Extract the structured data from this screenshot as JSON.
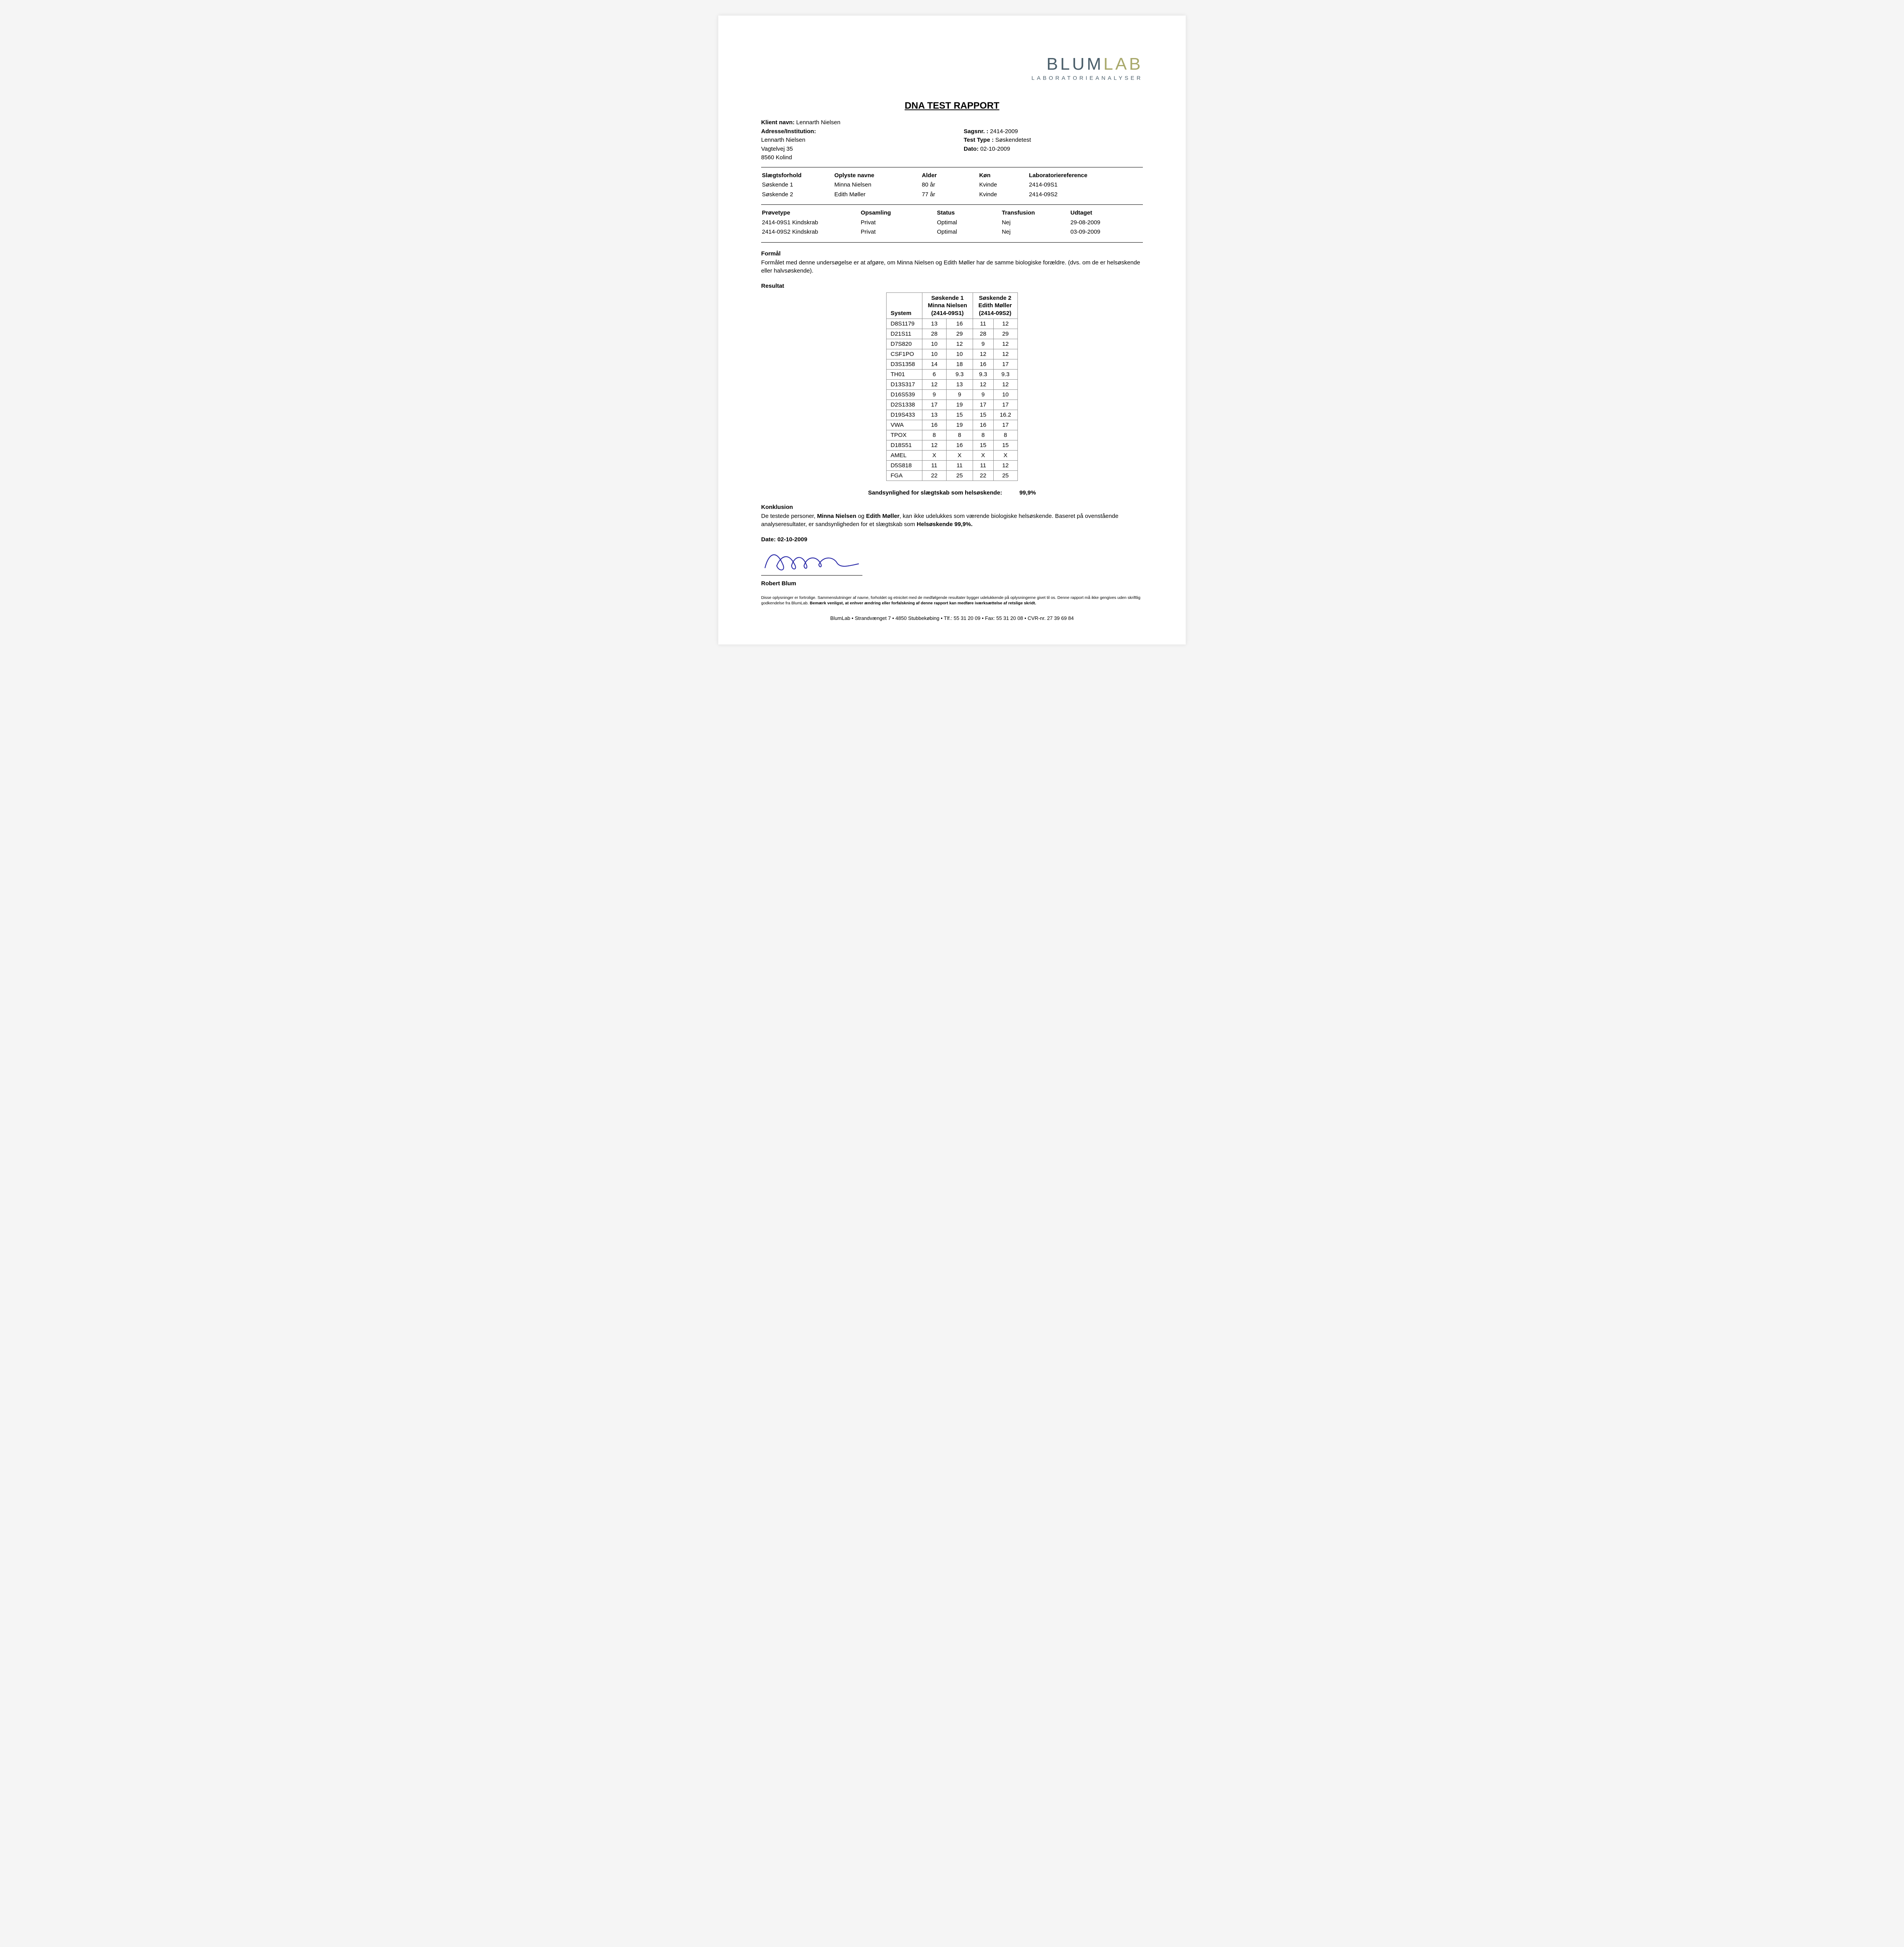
{
  "logo": {
    "part1": "BLUM",
    "part2": "LAB",
    "sub": "LABORATORIEANALYSER"
  },
  "title": "DNA TEST RAPPORT",
  "client": {
    "name_label": "Klient navn:",
    "name": "Lennarth Nielsen",
    "addr_label": "Adresse/Institution:",
    "addr1": "Lennarth Nielsen",
    "addr2": "Vagtelvej 35",
    "addr3": "8560 Kolind"
  },
  "caseinfo": {
    "case_label": "Sagsnr. :",
    "case": "2414-2009",
    "type_label": "Test Type :",
    "type": "Søskendetest",
    "date_label": "Dato:",
    "date": "02-10-2009"
  },
  "rel_head": {
    "c1": "Slægtsforhold",
    "c2": "Oplyste navne",
    "c3": "Alder",
    "c4": "Køn",
    "c5": "Laboratoriereference"
  },
  "rel_rows": [
    {
      "c1": "Søskende 1",
      "c2": "Minna Nielsen",
      "c3": "80 år",
      "c4": "Kvinde",
      "c5": "2414-09S1"
    },
    {
      "c1": "Søskende 2",
      "c2": "Edith Møller",
      "c3": "77 år",
      "c4": "Kvinde",
      "c5": "2414-09S2"
    }
  ],
  "samp_head": {
    "c1": "Prøvetype",
    "c2": "Opsamling",
    "c3": "Status",
    "c4": "Transfusion",
    "c5": "Udtaget"
  },
  "samp_rows": [
    {
      "c1": "2414-09S1 Kindskrab",
      "c2": "Privat",
      "c3": "Optimal",
      "c4": "Nej",
      "c5": "29-08-2009"
    },
    {
      "c1": "2414-09S2 Kindskrab",
      "c2": "Privat",
      "c3": "Optimal",
      "c4": "Nej",
      "c5": "03-09-2009"
    }
  ],
  "purpose": {
    "h": "Formål",
    "t": "Formålet med denne undersøgelse er at afgøre, om Minna Nielsen og Edith Møller har de samme biologiske forældre. (dvs. om de er helsøskende eller halvsøskende)."
  },
  "result_h": "Resultat",
  "result_head": {
    "sys": "System",
    "s1a": "Søskende 1",
    "s1b": "Minna Nielsen",
    "s1c": "(2414-09S1)",
    "s2a": "Søskende 2",
    "s2b": "Edith Møller",
    "s2c": "(2414-09S2)"
  },
  "result_rows": [
    [
      "D8S1179",
      "13",
      "16",
      "11",
      "12"
    ],
    [
      "D21S11",
      "28",
      "29",
      "28",
      "29"
    ],
    [
      "D7S820",
      "10",
      "12",
      "9",
      "12"
    ],
    [
      "CSF1PO",
      "10",
      "10",
      "12",
      "12"
    ],
    [
      "D3S1358",
      "14",
      "18",
      "16",
      "17"
    ],
    [
      "TH01",
      "6",
      "9.3",
      "9.3",
      "9.3"
    ],
    [
      "D13S317",
      "12",
      "13",
      "12",
      "12"
    ],
    [
      "D16S539",
      "9",
      "9",
      "9",
      "10"
    ],
    [
      "D2S1338",
      "17",
      "19",
      "17",
      "17"
    ],
    [
      "D19S433",
      "13",
      "15",
      "15",
      "16.2"
    ],
    [
      "VWA",
      "16",
      "19",
      "16",
      "17"
    ],
    [
      "TPOX",
      "8",
      "8",
      "8",
      "8"
    ],
    [
      "D18S51",
      "12",
      "16",
      "15",
      "15"
    ],
    [
      "AMEL",
      "X",
      "X",
      "X",
      "X"
    ],
    [
      "D5S818",
      "11",
      "11",
      "11",
      "12"
    ],
    [
      "FGA",
      "22",
      "25",
      "22",
      "25"
    ]
  ],
  "prob": {
    "label": "Sandsynlighed for slægtskab som helsøskende:",
    "value": "99,9%"
  },
  "concl": {
    "h": "Konklusion",
    "t1": "De testede personer, ",
    "p1": "Minna Nielsen",
    "t2": " og ",
    "p2": "Edith Møller",
    "t3": ", kan ikke udelukkes som værende biologiske helsøskende. Baseret på ovenstående analyseresultater, er sandsynligheden for et slægtskab som ",
    "t4": "Helsøskende 99,9%."
  },
  "sig": {
    "date_label": "Date: ",
    "date": "02-10-2009",
    "name": "Robert Blum"
  },
  "disclaimer": "Disse oplysninger er fortrolige. Sammenslutninger af navne, forholdet og etnicitet med de medfølgende resultater bygger udelukkende på oplysningerne givet til os. Denne rapport må ikke gengives uden skriftlig godkendelse fra BlumLab. ",
  "disclaimer_b": "Bemærk venligst, at enhver ændring eller forfalskning af denne rapport kan medføre iværksættelse af retslige skridt.",
  "footer": "BlumLab • Strandvænget 7 • 4850 Stubbekøbing •  Tlf.: 55 31 20 09 • Fax: 55 31 20 08 • CVR-nr. 27 39 69 84",
  "colors": {
    "logo_primary": "#4a5e6a",
    "logo_accent": "#a8a86a",
    "signature": "#2a2aa8",
    "border": "#888888",
    "text": "#000000",
    "page_bg": "#ffffff"
  }
}
